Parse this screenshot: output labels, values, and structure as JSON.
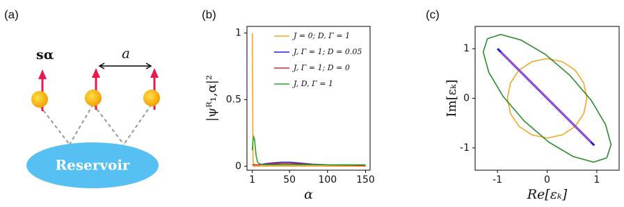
{
  "diagram": {
    "label": "(a)",
    "spin_label": "sα",
    "spacing_label": "a",
    "reservoir_label": "Reservoir"
  },
  "chart_data": [
    {
      "type": "line",
      "title": "(b)",
      "xlabel": "α",
      "ylabel": "|ψᴿ₁,α|²",
      "x": [
        1,
        2,
        3,
        4,
        5,
        6,
        8,
        10,
        15,
        20,
        30,
        40,
        50,
        60,
        70,
        80,
        100,
        120,
        150
      ],
      "xlim": [
        -6,
        156
      ],
      "xticks": [
        1,
        50,
        100,
        150
      ],
      "ylim": [
        -0.03,
        1.05
      ],
      "yticks": [
        0,
        0.5,
        1
      ],
      "legend": "upper right",
      "series": [
        {
          "name": "J = 0;  D, Γ = 1",
          "color": "#f5a623",
          "values": [
            1,
            0.05,
            0,
            0,
            0,
            0,
            0,
            0,
            0,
            0,
            0,
            0,
            0,
            0,
            0,
            0,
            0,
            0,
            0
          ]
        },
        {
          "name": "J, Γ = 1;  D = 0.05",
          "color": "#1f1fd6",
          "values": [
            0.01,
            0.01,
            0.01,
            0.01,
            0.01,
            0.01,
            0.01,
            0.01,
            0.015,
            0.02,
            0.025,
            0.03,
            0.03,
            0.025,
            0.02,
            0.015,
            0.01,
            0.01,
            0.005
          ]
        },
        {
          "name": "J, Γ = 1;  D = 0",
          "color": "#d62728",
          "values": [
            0.01,
            0.01,
            0.01,
            0.01,
            0.01,
            0.01,
            0.01,
            0.01,
            0.012,
            0.015,
            0.018,
            0.02,
            0.02,
            0.018,
            0.015,
            0.012,
            0.01,
            0.008,
            0.005
          ]
        },
        {
          "name": "J, D, Γ = 1",
          "color": "#2ca02c",
          "values": [
            0.12,
            0.2,
            0.22,
            0.2,
            0.14,
            0.08,
            0.03,
            0.02,
            0.01,
            0.01,
            0.01,
            0.01,
            0.01,
            0.01,
            0.01,
            0.01,
            0.01,
            0.01,
            0.01
          ]
        }
      ]
    },
    {
      "type": "line",
      "title": "(c)",
      "xlabel": "Re[εₖ]",
      "ylabel": "Im[εₖ]",
      "xlim": [
        -1.45,
        1.45
      ],
      "xticks": [
        -1,
        0,
        1
      ],
      "ylim": [
        -1.45,
        1.45
      ],
      "yticks": [
        -1,
        0,
        1
      ],
      "series": [
        {
          "color": "#f5a623",
          "x": [
            0.8,
            0.739,
            0.566,
            0.306,
            0,
            -0.306,
            -0.566,
            -0.739,
            -0.8,
            -0.739,
            -0.566,
            -0.306,
            0,
            0.306,
            0.566,
            0.739,
            0.8
          ],
          "values": [
            0,
            0.306,
            0.566,
            0.739,
            0.8,
            0.739,
            0.566,
            0.306,
            0,
            -0.306,
            -0.566,
            -0.739,
            -0.8,
            -0.739,
            -0.566,
            -0.306,
            0
          ]
        },
        {
          "color": "#2e8b2e",
          "x": [
            1.202,
            1.287,
            1.175,
            0.885,
            0.46,
            -0.036,
            -0.525,
            -0.935,
            -1.202,
            -1.287,
            -1.175,
            -0.885,
            -0.46,
            0.036,
            0.525,
            0.935,
            1.202
          ],
          "values": [
            -1.202,
            -0.935,
            -0.525,
            -0.036,
            0.46,
            0.885,
            1.175,
            1.287,
            1.202,
            0.935,
            0.525,
            0.036,
            -0.46,
            -0.885,
            -1.175,
            -1.287,
            -1.202
          ]
        },
        {
          "color": "#1f1fd6",
          "x": [
            -1,
            0.95
          ],
          "values": [
            1,
            -0.95
          ]
        },
        {
          "color": "#d65ad6",
          "x": [
            -0.93,
            0.88
          ],
          "values": [
            0.93,
            -0.88
          ]
        }
      ]
    }
  ]
}
